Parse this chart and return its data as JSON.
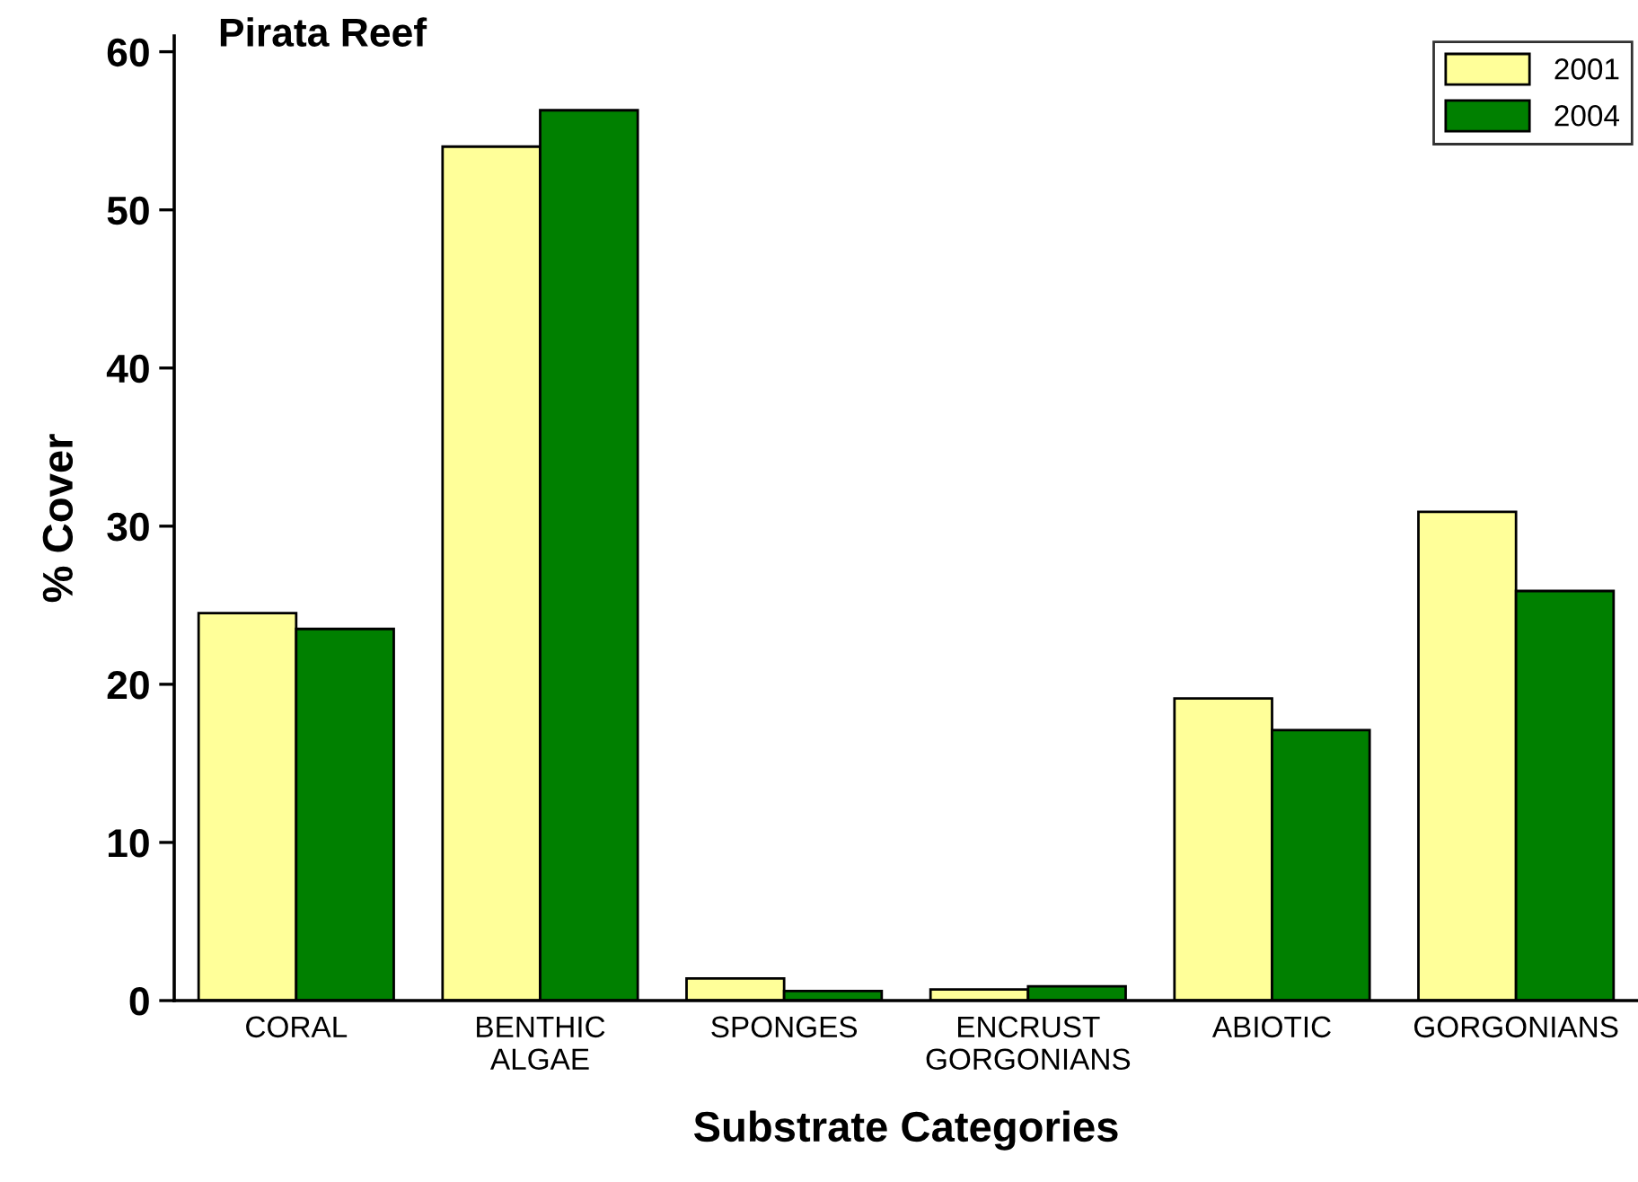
{
  "chart_data": {
    "type": "bar",
    "title": "Pirata Reef",
    "xlabel": "Substrate Categories",
    "ylabel": "% Cover",
    "categories": [
      "CORAL",
      "BENTHIC\nALGAE",
      "SPONGES",
      "ENCRUST\nGORGONIANS",
      "ABIOTIC",
      "GORGONIANS"
    ],
    "series": [
      {
        "name": "2001",
        "color": "#ffff99",
        "values": [
          24.5,
          54.0,
          1.4,
          0.7,
          19.1,
          30.9
        ]
      },
      {
        "name": "2004",
        "color": "#008000",
        "values": [
          23.5,
          56.3,
          0.6,
          0.9,
          17.1,
          25.9
        ]
      }
    ],
    "ylim": [
      0,
      61
    ],
    "yticks": [
      0,
      10,
      20,
      30,
      40,
      50,
      60
    ],
    "grid": false,
    "legend": "top right"
  }
}
